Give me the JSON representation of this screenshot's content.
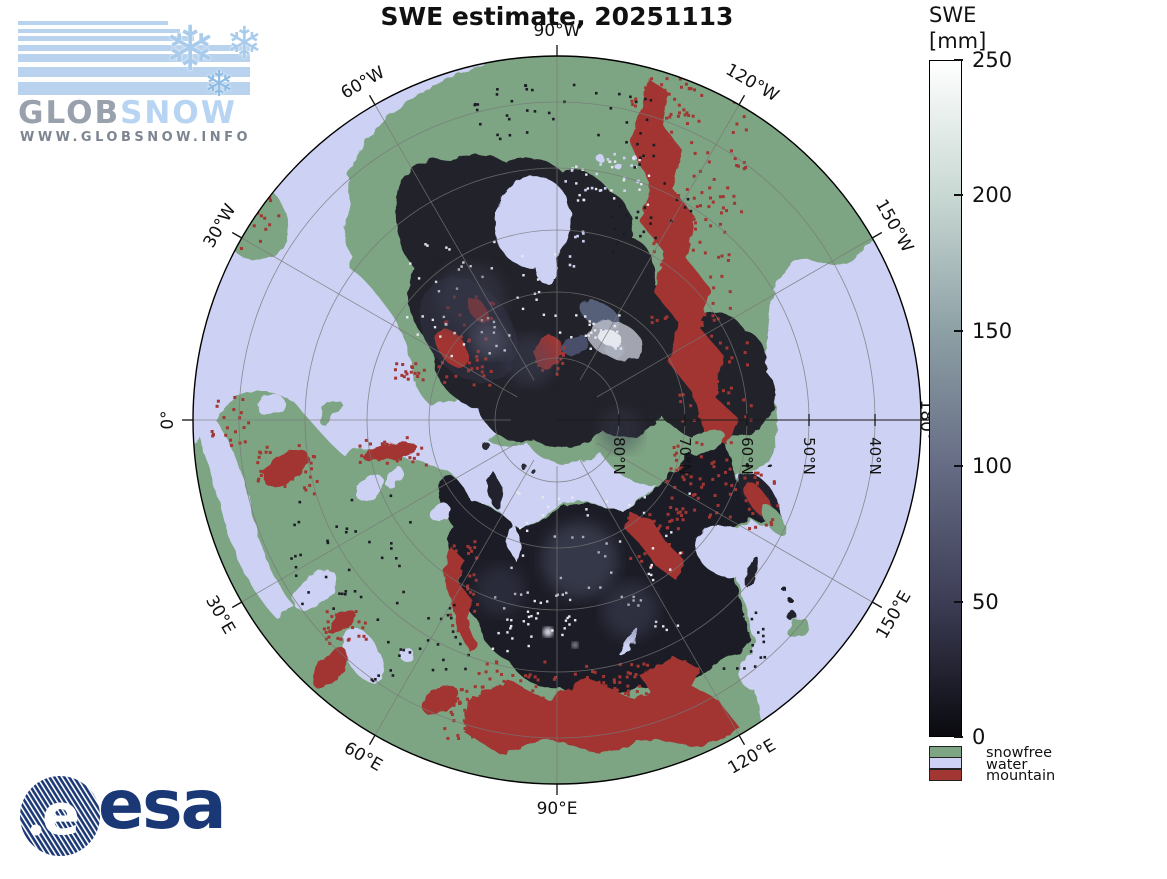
{
  "title": "SWE estimate, 20251113",
  "globsnow_logo": {
    "word_part1": "GLOB",
    "word_part2": "SNOW",
    "url": "WWW.GLOBSNOW.INFO",
    "flake_icon": "❄"
  },
  "esa_logo": {
    "text": "esa",
    "e_glyph": "e"
  },
  "colorbar": {
    "title_line1": "SWE",
    "title_line2": "[mm]",
    "min": 0,
    "max": 250,
    "ticks": [
      250,
      200,
      150,
      100,
      50,
      0
    ],
    "gradient": [
      {
        "value": 0,
        "color": "#0a0a0f"
      },
      {
        "value": 50,
        "color": "#3d3d56"
      },
      {
        "value": 100,
        "color": "#666c85"
      },
      {
        "value": 150,
        "color": "#8da0a5"
      },
      {
        "value": 200,
        "color": "#c8d8d3"
      },
      {
        "value": 250,
        "color": "#ffffff"
      }
    ]
  },
  "legend": [
    {
      "label": "snowfree",
      "color": "#7ea583"
    },
    {
      "label": "water",
      "color": "#cdd1f3"
    },
    {
      "label": "mountain",
      "color": "#a23633"
    }
  ],
  "map": {
    "water_color": "#cdd1f3",
    "snowfree_color": "#7ea583",
    "mountain_color": "#a23633",
    "snow_dark_color": "#1f1f29",
    "longitude_labels": [
      {
        "label": "90°W",
        "angle": 0
      },
      {
        "label": "120°W",
        "angle": 30
      },
      {
        "label": "150°W",
        "angle": 60
      },
      {
        "label": "180°",
        "angle": 90
      },
      {
        "label": "150°E",
        "angle": 120
      },
      {
        "label": "120°E",
        "angle": 150
      },
      {
        "label": "90°E",
        "angle": 180
      },
      {
        "label": "60°E",
        "angle": 210
      },
      {
        "label": "30°E",
        "angle": 240
      },
      {
        "label": "0°",
        "angle": 270
      },
      {
        "label": "30°W",
        "angle": 300
      },
      {
        "label": "60°W",
        "angle": 330
      }
    ],
    "latitude_labels": [
      {
        "label": "80°N",
        "radius": 62
      },
      {
        "label": "70°N",
        "radius": 128
      },
      {
        "label": "60°N",
        "radius": 190
      },
      {
        "label": "50°N",
        "radius": 252
      },
      {
        "label": "40°N",
        "radius": 318
      }
    ]
  }
}
